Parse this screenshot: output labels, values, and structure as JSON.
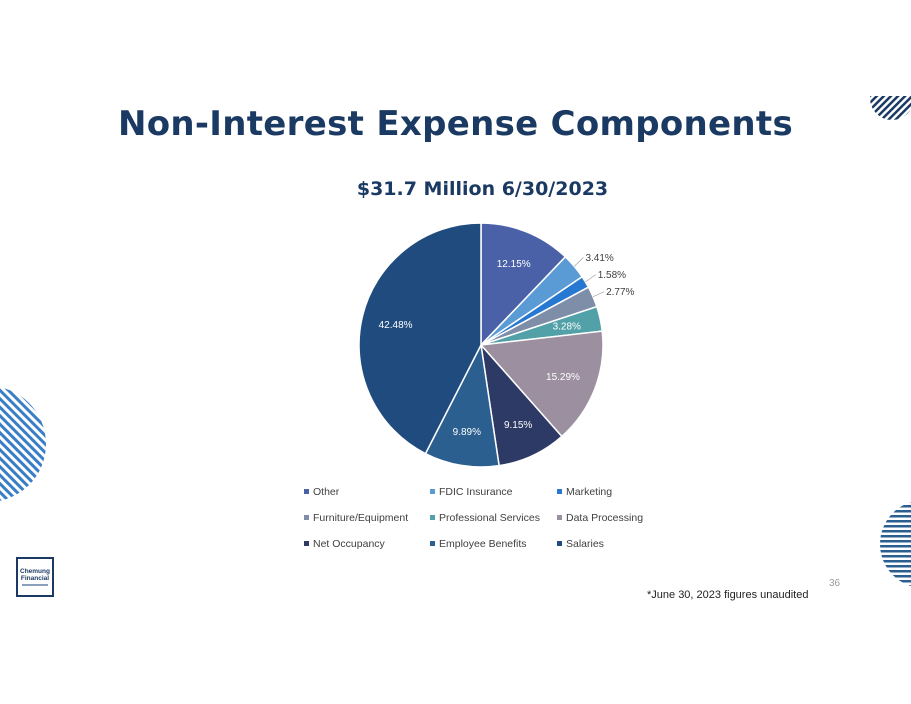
{
  "slide": {
    "title": "Non-Interest Expense Components",
    "footnote": "*June 30, 2023 figures unaudited",
    "page_number": "36",
    "logo_text_line1": "Chemung",
    "logo_text_line2": "Financial"
  },
  "chart_data": {
    "type": "pie",
    "title": "$31.7 Million 6/30/2023",
    "legend_position": "bottom",
    "slices": [
      {
        "name": "Other",
        "value": 12.15,
        "label": "12.15%",
        "color": "#4a61a8",
        "label_inside": true
      },
      {
        "name": "FDIC Insurance",
        "value": 3.41,
        "label": "3.41%",
        "color": "#5b9bd5",
        "label_inside": false
      },
      {
        "name": "Marketing",
        "value": 1.58,
        "label": "1.58%",
        "color": "#2778d0",
        "label_inside": false
      },
      {
        "name": "Furniture/Equipment",
        "value": 2.77,
        "label": "2.77%",
        "color": "#7f8ea8",
        "label_inside": false
      },
      {
        "name": "Professional Services",
        "value": 3.28,
        "label": "3.28%",
        "color": "#52a0a8",
        "label_inside": true
      },
      {
        "name": "Data Processing",
        "value": 15.29,
        "label": "15.29%",
        "color": "#9b8fa0",
        "label_inside": true
      },
      {
        "name": "Net Occupancy",
        "value": 9.15,
        "label": "9.15%",
        "color": "#2e3a66",
        "label_inside": true
      },
      {
        "name": "Employee Benefits",
        "value": 9.89,
        "label": "9.89%",
        "color": "#2a5f8f",
        "label_inside": true
      },
      {
        "name": "Salaries",
        "value": 42.48,
        "label": "42.48%",
        "color": "#1f4b7e",
        "label_inside": true
      }
    ]
  }
}
